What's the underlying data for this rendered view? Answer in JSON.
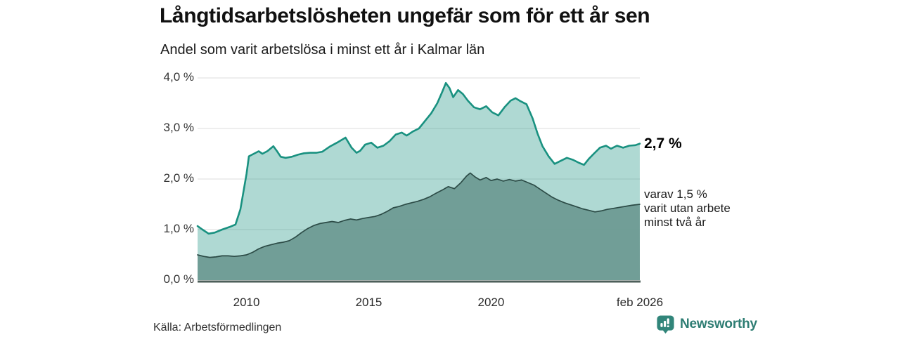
{
  "header": {
    "title": "Långtidsarbetslösheten ungefär som för ett år sen",
    "subtitle": "Andel som varit arbetslösa i minst ett år i Kalmar län"
  },
  "annotations": {
    "series1_end_label": "2,7 %",
    "series2_end_lines": [
      "varav 1,5 %",
      "varit utan arbete",
      "minst två år"
    ]
  },
  "footer": {
    "source": "Källa: Arbetsförmedlingen",
    "brand": "Newsworthy"
  },
  "colors": {
    "series1_line": "#199180",
    "series1_fill": "rgba(25,145,128,0.35)",
    "series2_line": "#2c4b46",
    "series2_fill": "#6e9b93",
    "baseline": "#4d5f5a",
    "gridline": "#dcdcdc",
    "brand_teal": "#2e7d73"
  },
  "chart_data": {
    "type": "area",
    "title": "Långtidsarbetslösheten ungefär som för ett år sen",
    "subtitle": "Andel som varit arbetslösa i minst ett år i Kalmar län",
    "unit": "%",
    "grid": true,
    "legend_position": "right-annotations",
    "x_axis": {
      "min": 2008.0,
      "max": 2026.083,
      "ticks": [
        {
          "year": 2010,
          "label": "2010"
        },
        {
          "year": 2015,
          "label": "2015"
        },
        {
          "year": 2020,
          "label": "2020"
        },
        {
          "year": 2026.083,
          "label": "feb 2026"
        }
      ]
    },
    "y_axis": {
      "min": 0,
      "max": 4,
      "ticks": [
        {
          "value": 0,
          "label": "0,0 %"
        },
        {
          "value": 1,
          "label": "1,0 %"
        },
        {
          "value": 2,
          "label": "2,0 %"
        },
        {
          "value": 3,
          "label": "3,0 %"
        },
        {
          "value": 4,
          "label": "4,0 %"
        }
      ]
    },
    "series": [
      {
        "name": "Andel arbetslösa minst ett år",
        "end_value": 2.7,
        "end_label": "2,7 %",
        "line_color": "#199180",
        "fill_color": "rgba(25,145,128,0.35)",
        "points": [
          [
            2008.0,
            1.07
          ],
          [
            2008.2,
            1.0
          ],
          [
            2008.45,
            0.92
          ],
          [
            2008.7,
            0.94
          ],
          [
            2009.0,
            1.0
          ],
          [
            2009.3,
            1.05
          ],
          [
            2009.55,
            1.1
          ],
          [
            2009.75,
            1.4
          ],
          [
            2010.0,
            2.1
          ],
          [
            2010.1,
            2.45
          ],
          [
            2010.3,
            2.5
          ],
          [
            2010.5,
            2.55
          ],
          [
            2010.65,
            2.5
          ],
          [
            2010.85,
            2.55
          ],
          [
            2011.1,
            2.65
          ],
          [
            2011.25,
            2.55
          ],
          [
            2011.4,
            2.44
          ],
          [
            2011.6,
            2.42
          ],
          [
            2011.85,
            2.44
          ],
          [
            2012.1,
            2.48
          ],
          [
            2012.35,
            2.51
          ],
          [
            2012.6,
            2.52
          ],
          [
            2012.85,
            2.52
          ],
          [
            2013.1,
            2.54
          ],
          [
            2013.4,
            2.64
          ],
          [
            2013.7,
            2.72
          ],
          [
            2014.05,
            2.82
          ],
          [
            2014.3,
            2.62
          ],
          [
            2014.5,
            2.52
          ],
          [
            2014.65,
            2.56
          ],
          [
            2014.85,
            2.68
          ],
          [
            2015.1,
            2.72
          ],
          [
            2015.35,
            2.62
          ],
          [
            2015.6,
            2.66
          ],
          [
            2015.85,
            2.75
          ],
          [
            2016.1,
            2.88
          ],
          [
            2016.35,
            2.92
          ],
          [
            2016.55,
            2.86
          ],
          [
            2016.8,
            2.94
          ],
          [
            2017.05,
            3.0
          ],
          [
            2017.3,
            3.15
          ],
          [
            2017.55,
            3.3
          ],
          [
            2017.8,
            3.5
          ],
          [
            2018.0,
            3.72
          ],
          [
            2018.15,
            3.9
          ],
          [
            2018.3,
            3.8
          ],
          [
            2018.45,
            3.62
          ],
          [
            2018.65,
            3.76
          ],
          [
            2018.85,
            3.68
          ],
          [
            2019.05,
            3.55
          ],
          [
            2019.3,
            3.42
          ],
          [
            2019.55,
            3.38
          ],
          [
            2019.8,
            3.44
          ],
          [
            2020.05,
            3.32
          ],
          [
            2020.3,
            3.26
          ],
          [
            2020.55,
            3.42
          ],
          [
            2020.8,
            3.55
          ],
          [
            2021.0,
            3.6
          ],
          [
            2021.2,
            3.54
          ],
          [
            2021.45,
            3.48
          ],
          [
            2021.7,
            3.2
          ],
          [
            2021.9,
            2.9
          ],
          [
            2022.1,
            2.65
          ],
          [
            2022.35,
            2.45
          ],
          [
            2022.6,
            2.3
          ],
          [
            2022.85,
            2.36
          ],
          [
            2023.1,
            2.42
          ],
          [
            2023.35,
            2.38
          ],
          [
            2023.6,
            2.32
          ],
          [
            2023.8,
            2.28
          ],
          [
            2024.0,
            2.4
          ],
          [
            2024.2,
            2.5
          ],
          [
            2024.45,
            2.62
          ],
          [
            2024.7,
            2.66
          ],
          [
            2024.9,
            2.6
          ],
          [
            2025.15,
            2.66
          ],
          [
            2025.4,
            2.62
          ],
          [
            2025.65,
            2.66
          ],
          [
            2025.9,
            2.67
          ],
          [
            2026.08,
            2.7
          ]
        ]
      },
      {
        "name": "varav utan arbete minst två år",
        "end_value": 1.5,
        "end_label": "varav 1,5 % varit utan arbete minst två år",
        "line_color": "#2c4b46",
        "fill_color": "#6e9b93",
        "points": [
          [
            2008.0,
            0.5
          ],
          [
            2008.25,
            0.47
          ],
          [
            2008.5,
            0.45
          ],
          [
            2008.75,
            0.46
          ],
          [
            2009.0,
            0.48
          ],
          [
            2009.25,
            0.48
          ],
          [
            2009.5,
            0.47
          ],
          [
            2009.75,
            0.48
          ],
          [
            2010.0,
            0.5
          ],
          [
            2010.25,
            0.55
          ],
          [
            2010.5,
            0.62
          ],
          [
            2010.75,
            0.67
          ],
          [
            2011.0,
            0.7
          ],
          [
            2011.25,
            0.73
          ],
          [
            2011.5,
            0.75
          ],
          [
            2011.75,
            0.78
          ],
          [
            2012.0,
            0.85
          ],
          [
            2012.25,
            0.94
          ],
          [
            2012.5,
            1.02
          ],
          [
            2012.75,
            1.08
          ],
          [
            2013.0,
            1.12
          ],
          [
            2013.25,
            1.14
          ],
          [
            2013.5,
            1.16
          ],
          [
            2013.75,
            1.14
          ],
          [
            2014.0,
            1.18
          ],
          [
            2014.25,
            1.21
          ],
          [
            2014.5,
            1.19
          ],
          [
            2014.75,
            1.22
          ],
          [
            2015.0,
            1.24
          ],
          [
            2015.25,
            1.26
          ],
          [
            2015.5,
            1.3
          ],
          [
            2015.75,
            1.36
          ],
          [
            2016.0,
            1.43
          ],
          [
            2016.25,
            1.46
          ],
          [
            2016.5,
            1.5
          ],
          [
            2016.75,
            1.53
          ],
          [
            2017.0,
            1.56
          ],
          [
            2017.25,
            1.6
          ],
          [
            2017.5,
            1.65
          ],
          [
            2017.75,
            1.72
          ],
          [
            2018.0,
            1.78
          ],
          [
            2018.25,
            1.85
          ],
          [
            2018.5,
            1.81
          ],
          [
            2018.75,
            1.92
          ],
          [
            2019.0,
            2.06
          ],
          [
            2019.15,
            2.12
          ],
          [
            2019.35,
            2.04
          ],
          [
            2019.55,
            1.98
          ],
          [
            2019.8,
            2.03
          ],
          [
            2020.0,
            1.97
          ],
          [
            2020.25,
            2.0
          ],
          [
            2020.5,
            1.96
          ],
          [
            2020.75,
            1.99
          ],
          [
            2021.0,
            1.96
          ],
          [
            2021.25,
            1.98
          ],
          [
            2021.5,
            1.93
          ],
          [
            2021.75,
            1.88
          ],
          [
            2022.0,
            1.8
          ],
          [
            2022.25,
            1.72
          ],
          [
            2022.5,
            1.64
          ],
          [
            2022.75,
            1.58
          ],
          [
            2023.0,
            1.53
          ],
          [
            2023.25,
            1.49
          ],
          [
            2023.5,
            1.45
          ],
          [
            2023.75,
            1.41
          ],
          [
            2024.0,
            1.38
          ],
          [
            2024.25,
            1.35
          ],
          [
            2024.5,
            1.37
          ],
          [
            2024.75,
            1.4
          ],
          [
            2025.0,
            1.42
          ],
          [
            2025.25,
            1.44
          ],
          [
            2025.5,
            1.46
          ],
          [
            2025.75,
            1.48
          ],
          [
            2026.08,
            1.5
          ]
        ]
      }
    ]
  }
}
